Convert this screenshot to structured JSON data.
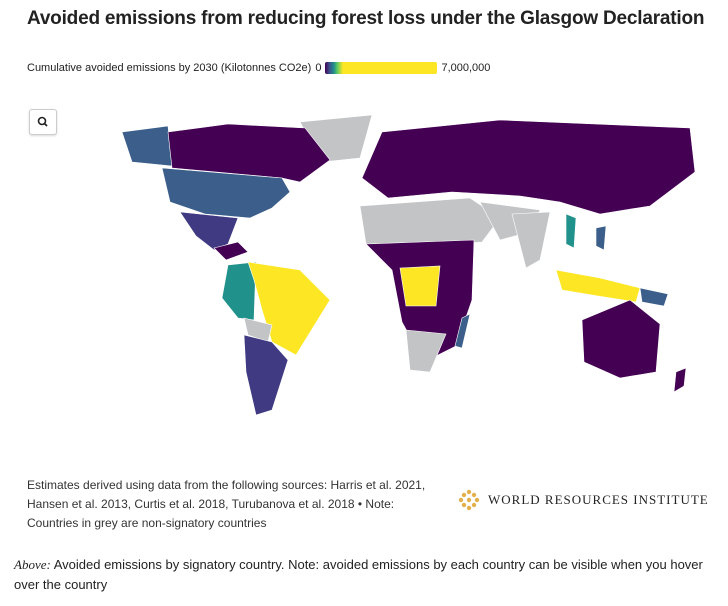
{
  "title": "Avoided emissions from reducing forest loss under the Glasgow Declaration",
  "legend": {
    "label": "Cumulative avoided emissions by 2030 (Kilotonnes CO2e)",
    "min": 0,
    "max": {
      "value": 7000000,
      "label": "7,000,000"
    }
  },
  "sources": "Estimates derived using data from the following sources: Harris et al. 2021, Hansen et al. 2013, Curtis et al. 2018, Turubanova et al. 2018 • Note: Countries in grey are non-signatory countries",
  "logo": "WORLD RESOURCES INSTITUTE",
  "caption": {
    "lead": "Above:",
    "text": "Avoided emissions by signatory country. Note: avoided emissions by each country can be visible when you hover over the country"
  }
}
